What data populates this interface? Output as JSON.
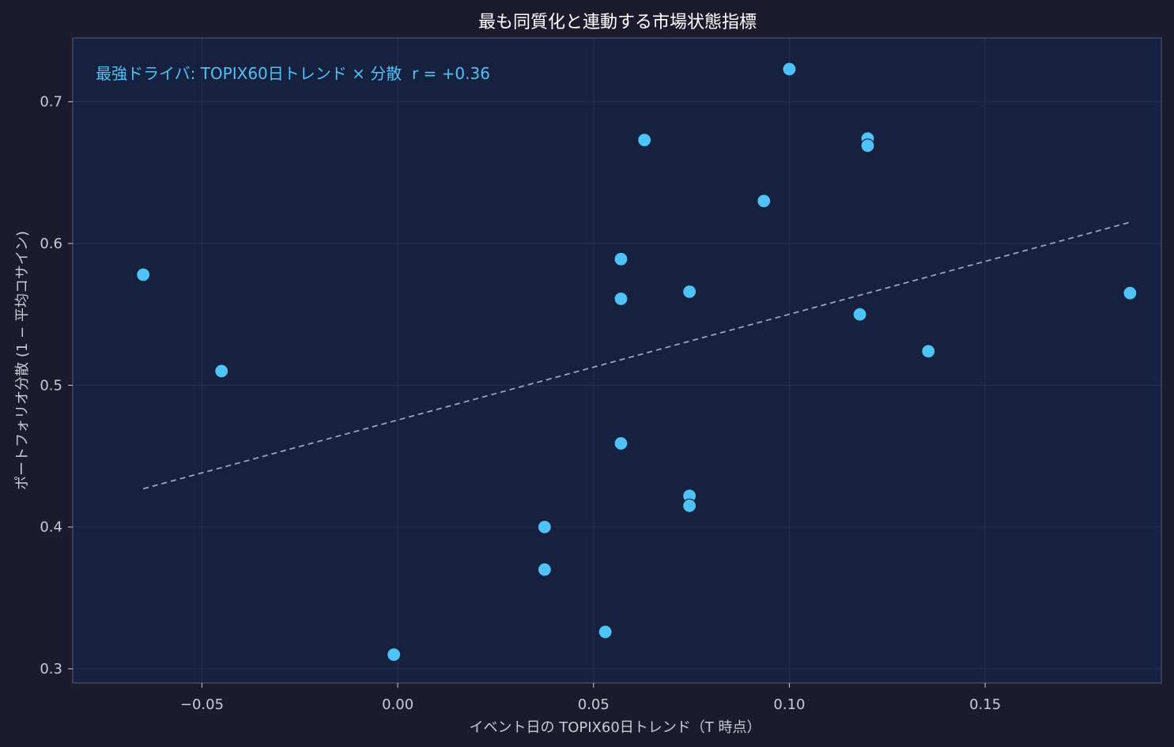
{
  "chart_data": {
    "type": "scatter",
    "title": "最も同質化と連動する市場状態指標",
    "xlabel": "イベント日の TOPIX60日トレンド（T 時点）",
    "ylabel": "ポートフォリオ分散 (1 − 平均コサイン)",
    "annotation": "最強ドライバ: TOPIX60日トレンド × 分散  r = +0.36",
    "xlim": [
      -0.083,
      0.195
    ],
    "ylim": [
      0.29,
      0.745
    ],
    "xticks": [
      -0.05,
      0.0,
      0.05,
      0.1,
      0.15
    ],
    "xtick_labels": [
      "−0.05",
      "0.00",
      "0.05",
      "0.10",
      "0.15"
    ],
    "yticks": [
      0.3,
      0.4,
      0.5,
      0.6,
      0.7
    ],
    "ytick_labels": [
      "0.3",
      "0.4",
      "0.5",
      "0.6",
      "0.7"
    ],
    "grid": true,
    "points": [
      {
        "x": -0.065,
        "y": 0.578
      },
      {
        "x": -0.045,
        "y": 0.51
      },
      {
        "x": -0.001,
        "y": 0.31
      },
      {
        "x": 0.0375,
        "y": 0.4
      },
      {
        "x": 0.0375,
        "y": 0.37
      },
      {
        "x": 0.053,
        "y": 0.326
      },
      {
        "x": 0.057,
        "y": 0.589
      },
      {
        "x": 0.057,
        "y": 0.561
      },
      {
        "x": 0.057,
        "y": 0.459
      },
      {
        "x": 0.063,
        "y": 0.673
      },
      {
        "x": 0.0745,
        "y": 0.566
      },
      {
        "x": 0.0745,
        "y": 0.422
      },
      {
        "x": 0.0745,
        "y": 0.415
      },
      {
        "x": 0.0935,
        "y": 0.63
      },
      {
        "x": 0.1,
        "y": 0.723
      },
      {
        "x": 0.118,
        "y": 0.55
      },
      {
        "x": 0.12,
        "y": 0.674
      },
      {
        "x": 0.12,
        "y": 0.669
      },
      {
        "x": 0.1355,
        "y": 0.524
      },
      {
        "x": 0.187,
        "y": 0.565
      }
    ],
    "trendline": {
      "x": [
        -0.065,
        0.187
      ],
      "y": [
        0.427,
        0.615
      ]
    },
    "colors": {
      "background": "#1c1b2e",
      "plot_background": "#16203f",
      "point": "#4fc3f7",
      "trendline": "#9aa3c0",
      "annotation": "#4fc3f7",
      "text": "#c9cbd6",
      "title": "#ffffff",
      "grid": "#25304f",
      "frame": "#4a5170"
    }
  }
}
